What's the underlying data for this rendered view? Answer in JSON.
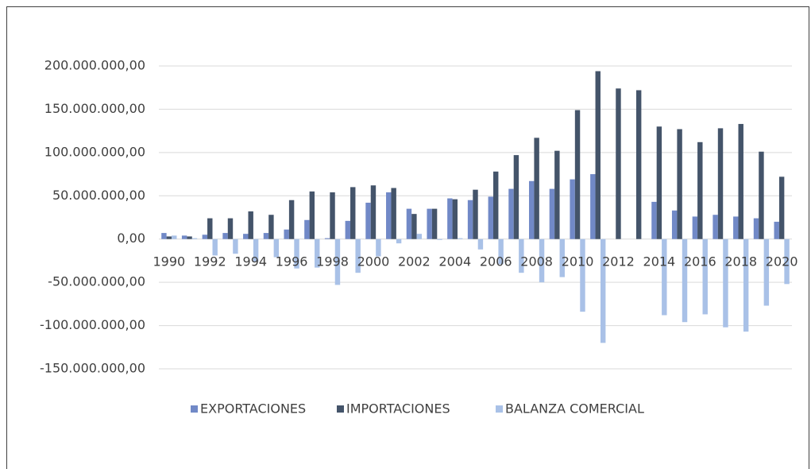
{
  "chart_data": {
    "type": "bar",
    "categories": [
      "1990",
      null,
      "1992",
      null,
      "1994",
      null,
      "1996",
      null,
      "1998",
      null,
      "2000",
      null,
      "2002",
      null,
      "2004",
      null,
      "2006",
      null,
      "2008",
      null,
      "2010",
      null,
      "2012",
      null,
      "2014",
      null,
      "2016",
      null,
      "2018",
      null,
      "2020"
    ],
    "series": [
      {
        "name": "EXPORTACIONES",
        "color": "#7189c7",
        "values": [
          7000000,
          4000000,
          5000000,
          7000000,
          6000000,
          7000000,
          11000000,
          22000000,
          1000000,
          21000000,
          42000000,
          54000000,
          35000000,
          35000000,
          47000000,
          45000000,
          49000000,
          58000000,
          67000000,
          58000000,
          69000000,
          75000000,
          null,
          null,
          43000000,
          33000000,
          26000000,
          28000000,
          26000000,
          24000000,
          20000000
        ]
      },
      {
        "name": "IMPORTACIONES",
        "color": "#44546a",
        "values": [
          3000000,
          3000000,
          24000000,
          24000000,
          32000000,
          28000000,
          45000000,
          55000000,
          54000000,
          60000000,
          62000000,
          59000000,
          29000000,
          35000000,
          46000000,
          57000000,
          78000000,
          97000000,
          117000000,
          102000000,
          149000000,
          194000000,
          174000000,
          172000000,
          130000000,
          127000000,
          112000000,
          128000000,
          133000000,
          101000000,
          72000000
        ]
      },
      {
        "name": "BALANZA COMERCIAL",
        "color": "#a9c1e7",
        "values": [
          4000000,
          1000000,
          -19000000,
          -17000000,
          -26000000,
          -21000000,
          -34000000,
          -33000000,
          -53000000,
          -39000000,
          -20000000,
          -5000000,
          6000000,
          -1000000,
          1000000,
          -12000000,
          -29000000,
          -39000000,
          -50000000,
          -44000000,
          -84000000,
          -120000000,
          null,
          null,
          -88000000,
          -96000000,
          -87000000,
          -102000000,
          -107000000,
          -77000000,
          -52000000
        ]
      }
    ],
    "ylim": [
      -150000000,
      200000000
    ],
    "yticks": [
      {
        "value": -150000000,
        "label": "-150.000.000,00"
      },
      {
        "value": -100000000,
        "label": "-100.000.000,00"
      },
      {
        "value": -50000000,
        "label": "-50.000.000,00"
      },
      {
        "value": 0,
        "label": "0,00"
      },
      {
        "value": 50000000,
        "label": "50.000.000,00"
      },
      {
        "value": 100000000,
        "label": "100.000.000,00"
      },
      {
        "value": 150000000,
        "label": "150.000.000,00"
      },
      {
        "value": 200000000,
        "label": "200.000.000,00"
      }
    ],
    "grid": true,
    "legend": "bottom"
  }
}
